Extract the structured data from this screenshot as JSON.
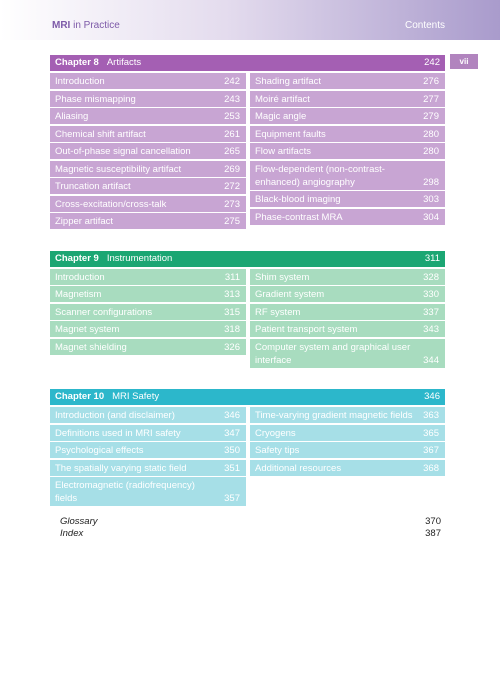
{
  "header": {
    "title_bold": "MRI",
    "title_rest": "in Practice",
    "section": "Contents",
    "page_number": "vii"
  },
  "chapters": [
    {
      "label": "Chapter 8",
      "title": "Artifacts",
      "page": 242,
      "theme": "purple",
      "left": [
        [
          "Introduction",
          242
        ],
        [
          "Phase mismapping",
          243
        ],
        [
          "Aliasing",
          253
        ],
        [
          "Chemical shift artifact",
          261
        ],
        [
          "Out-of-phase signal cancellation",
          265
        ],
        [
          "Magnetic susceptibility artifact",
          269
        ],
        [
          "Truncation artifact",
          272
        ],
        [
          "Cross-excitation/cross-talk",
          273
        ],
        [
          "Zipper artifact",
          275
        ]
      ],
      "right": [
        [
          "Shading artifact",
          276
        ],
        [
          "Moiré artifact",
          277
        ],
        [
          "Magic angle",
          279
        ],
        [
          "Equipment faults",
          280
        ],
        [
          "Flow artifacts",
          280
        ],
        [
          "Flow-dependent (non-contrast-enhanced) angiography",
          298
        ],
        [
          "Black-blood imaging",
          303
        ],
        [
          "Phase-contrast MRA",
          304
        ]
      ]
    },
    {
      "label": "Chapter 9",
      "title": "Instrumentation",
      "page": 311,
      "theme": "green",
      "left": [
        [
          "Introduction",
          311
        ],
        [
          "Magnetism",
          313
        ],
        [
          "Scanner configurations",
          315
        ],
        [
          "Magnet system",
          318
        ],
        [
          "Magnet shielding",
          326
        ]
      ],
      "right": [
        [
          "Shim system",
          328
        ],
        [
          "Gradient system",
          330
        ],
        [
          "RF system",
          337
        ],
        [
          "Patient transport system",
          343
        ],
        [
          "Computer system and graphical user interface",
          344
        ]
      ]
    },
    {
      "label": "Chapter 10",
      "title": "MRI Safety",
      "page": 346,
      "theme": "cyan",
      "left": [
        [
          "Introduction (and disclaimer)",
          346
        ],
        [
          "Definitions used in MRI safety",
          347
        ],
        [
          "Psychological effects",
          350
        ],
        [
          "The spatially varying static field",
          351
        ],
        [
          "Electromagnetic (radiofrequency) fields",
          357
        ]
      ],
      "right": [
        [
          "Time-varying gradient magnetic fields",
          363
        ],
        [
          "Cryogens",
          365
        ],
        [
          "Safety tips",
          367
        ],
        [
          "Additional resources",
          368
        ]
      ]
    }
  ],
  "back_matter": [
    [
      "Glossary",
      370
    ],
    [
      "Index",
      387
    ]
  ]
}
